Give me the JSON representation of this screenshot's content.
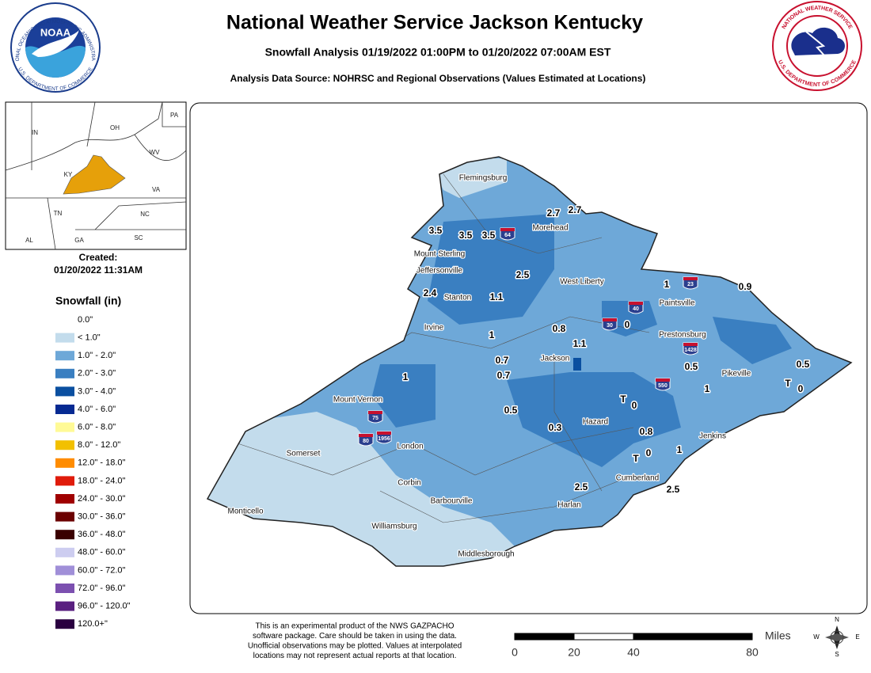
{
  "header": {
    "title": "National Weather Service Jackson Kentucky",
    "subtitle": "Snowfall Analysis 01/19/2022 01:00PM to 01/20/2022 07:00AM EST",
    "source": "Analysis Data Source: NOHRSC and Regional Observations (Values Estimated at Locations)"
  },
  "logos": {
    "noaa": "NOAA",
    "noaa_top": "NATIONAL OCEANIC AND ATMOSPHERIC ADMINISTRATION",
    "noaa_bottom": "U.S. DEPARTMENT OF COMMERCE",
    "nws_top": "NATIONAL WEATHER SERVICE",
    "nws_bottom": "U.S. DEPARTMENT OF COMMERCE"
  },
  "inset_labels": [
    "IN",
    "OH",
    "PA",
    "WV",
    "KY",
    "VA",
    "TN",
    "NC",
    "AL",
    "GA",
    "SC"
  ],
  "created": {
    "label": "Created:",
    "date": "01/20/2022 11:31AM"
  },
  "legend": {
    "title": "Snowfall (in)",
    "items": [
      {
        "label": "0.0\"",
        "color": "#ffffff"
      },
      {
        "label": "< 1.0\"",
        "color": "#c3dcec"
      },
      {
        "label": "1.0\" - 2.0\"",
        "color": "#6ea8d8"
      },
      {
        "label": "2.0\" - 3.0\"",
        "color": "#3a7fc1"
      },
      {
        "label": "3.0\" - 4.0\"",
        "color": "#0a4fa0"
      },
      {
        "label": "4.0\" - 6.0\"",
        "color": "#062a92"
      },
      {
        "label": "6.0\" - 8.0\"",
        "color": "#fffa96"
      },
      {
        "label": "8.0\" - 12.0\"",
        "color": "#f2c000"
      },
      {
        "label": "12.0\" - 18.0\"",
        "color": "#ff8c00"
      },
      {
        "label": "18.0\" - 24.0\"",
        "color": "#e01b0a"
      },
      {
        "label": "24.0\" - 30.0\"",
        "color": "#a00000"
      },
      {
        "label": "30.0\" - 36.0\"",
        "color": "#6b0000"
      },
      {
        "label": "36.0\" - 48.0\"",
        "color": "#3a0000"
      },
      {
        "label": "48.0\" - 60.0\"",
        "color": "#cdcdf0"
      },
      {
        "label": "60.0\" - 72.0\"",
        "color": "#a08fd8"
      },
      {
        "label": "72.0\" - 96.0\"",
        "color": "#7c50b0"
      },
      {
        "label": "96.0\" - 120.0\"",
        "color": "#5a2080"
      },
      {
        "label": "120.0+\"",
        "color": "#2a0040"
      }
    ]
  },
  "towns": [
    "Flemingsburg",
    "Morehead",
    "Mount Sterling",
    "Jeffersonville",
    "West Liberty",
    "Stanton",
    "Paintsville",
    "Irvine",
    "Prestonsburg",
    "Jackson",
    "Pikeville",
    "Mount Vernon",
    "Hazard",
    "Jenkins",
    "London",
    "Somerset",
    "Corbin",
    "Cumberland",
    "Barbourville",
    "Harlan",
    "Monticello",
    "Williamsburg",
    "Middlesborough"
  ],
  "highway_shields": [
    "64",
    "23",
    "40",
    "30",
    "1428",
    "550",
    "75",
    "80",
    "1956"
  ],
  "observations": [
    "3.5",
    "3.5",
    "3.5",
    "2.7",
    "2.7",
    "2.5",
    "2.4",
    "1.1",
    "1",
    "0.9",
    "1",
    "0.8",
    "1.1",
    "0",
    "0.7",
    "0.7",
    "0.5",
    "1",
    "1",
    "0.5",
    "T",
    "0",
    "T",
    "0",
    "0.5",
    "0.3",
    "0.8",
    "1",
    "T",
    "0",
    "2.5",
    "2.5"
  ],
  "disclaimer": [
    "This is an experimental product of the NWS GAZPACHO",
    "software package. Care should be taken in using the data.",
    "Unofficial observations may be plotted. Values at interpolated",
    "locations may not represent actual reports at that location."
  ],
  "scale": {
    "unit": "Miles",
    "ticks": [
      0,
      20,
      40,
      80
    ]
  },
  "compass": {
    "n": "N",
    "s": "S",
    "e": "E",
    "w": "W"
  }
}
